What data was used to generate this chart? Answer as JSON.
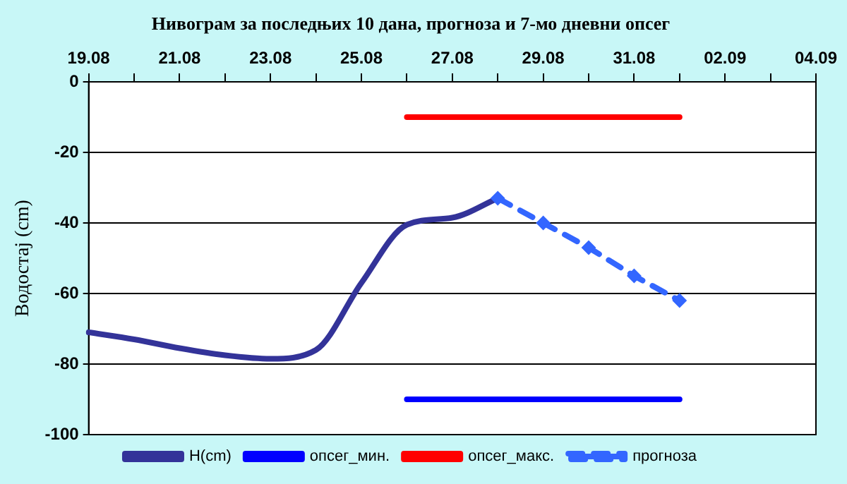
{
  "chart_data": {
    "type": "line",
    "title": "Нивограм за последњих 10 дана, прогноза и 7-мо дневни опсег",
    "ylabel": "Водостај (cm)",
    "categories": [
      "19.08",
      null,
      "21.08",
      null,
      "23.08",
      null,
      "25.08",
      null,
      "27.08",
      null,
      "29.08",
      null,
      "31.08",
      null,
      "02.09",
      null,
      "04.09"
    ],
    "ylim": [
      -100,
      0
    ],
    "yticks": [
      0,
      -20,
      -40,
      -60,
      -80,
      -100
    ],
    "grid": "y",
    "legend": "bottom",
    "series": [
      {
        "name": "H(cm)",
        "color": "#333399",
        "marker": "none",
        "line_style": "solid",
        "values": [
          -71,
          -73,
          -75.5,
          -77.5,
          -78.5,
          -76,
          -57,
          -40.5,
          -38.5,
          -33,
          null,
          null,
          null,
          null,
          null,
          null,
          null
        ]
      },
      {
        "name": "опсег_мин.",
        "color": "#0000ff",
        "marker": "none",
        "line_style": "solid",
        "values": [
          null,
          null,
          null,
          null,
          null,
          null,
          null,
          -90,
          -90,
          -90,
          -90,
          -90,
          -90,
          -90,
          null,
          null,
          null
        ]
      },
      {
        "name": "опсег_макс.",
        "color": "#ff0000",
        "marker": "none",
        "line_style": "solid",
        "values": [
          null,
          null,
          null,
          null,
          null,
          null,
          null,
          -10,
          -10,
          -10,
          -10,
          -10,
          -10,
          -10,
          null,
          null,
          null
        ]
      },
      {
        "name": "прогноза",
        "color": "#3366ff",
        "marker": "diamond",
        "line_style": "dashed",
        "values": [
          null,
          null,
          null,
          null,
          null,
          null,
          null,
          null,
          null,
          -33,
          -40,
          -47,
          -55,
          -62,
          null,
          null,
          null
        ]
      }
    ]
  }
}
